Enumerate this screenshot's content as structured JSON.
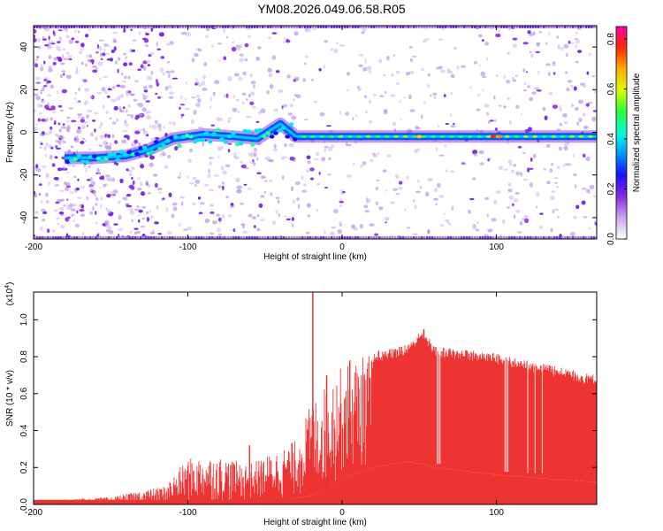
{
  "title": "YM08.2026.049.06.58.R05",
  "chart_data": [
    {
      "type": "heatmap",
      "name": "spectrogram",
      "xlabel": "Height of straight line (km)",
      "ylabel": "Frequency (Hz)",
      "xlim": [
        -200,
        165
      ],
      "ylim": [
        -50,
        50
      ],
      "xticks": [
        "-200",
        "-100",
        "0",
        "100"
      ],
      "yticks": [
        "-40",
        "-20",
        "0",
        "20",
        "40"
      ],
      "colorbar": {
        "label": "Normalized spectral amplitude",
        "range": [
          0.0,
          0.85
        ],
        "ticks": [
          "0.0",
          "0.2",
          "0.4",
          "0.6",
          "0.8"
        ],
        "colors": [
          "#ffffff",
          "#c9a7ee",
          "#8a2be2",
          "#1a0dff",
          "#0096ff",
          "#00ffd2",
          "#2bff3a",
          "#d8ff00",
          "#ffae00",
          "#ff2a00",
          "#ff00aa"
        ]
      },
      "trace": {
        "x": [
          -180,
          -160,
          -140,
          -125,
          -110,
          -90,
          -70,
          -55,
          -40,
          -30,
          0,
          50,
          100,
          165
        ],
        "y": [
          -12,
          -12,
          -11,
          -8,
          -3,
          -1,
          -2,
          -3,
          4,
          -2,
          -2,
          -2,
          -2,
          -2
        ]
      },
      "trace_color": "#0055ff",
      "hot_spots": [
        {
          "x": 98,
          "y": -2,
          "color": "#ff2200"
        },
        {
          "x": 102,
          "y": -2,
          "color": "#ff8800"
        },
        {
          "x": 50,
          "y": -2,
          "color": "#ffcc00"
        }
      ]
    },
    {
      "type": "area",
      "name": "snr",
      "xlabel": "Height of straight line (km)",
      "ylabel": "SNR (10 * v/v)",
      "multiplier": "(x10",
      "multiplier_exp": "4",
      "multiplier_close": ")",
      "xlim": [
        -200,
        165
      ],
      "ylim": [
        0,
        1.15
      ],
      "xticks": [
        "-200",
        "-100",
        "0",
        "100"
      ],
      "yticks": [
        "0.0",
        "0.2",
        "0.4",
        "0.6",
        "0.8",
        "1.0"
      ],
      "color": "#ee3333",
      "upper_x": [
        -200,
        -150,
        -115,
        -100,
        -80,
        -60,
        -40,
        -30,
        -20,
        -10,
        0,
        20,
        40,
        53,
        60,
        100,
        165
      ],
      "upper_y": [
        0.02,
        0.04,
        0.1,
        0.25,
        0.26,
        0.22,
        0.3,
        0.35,
        0.55,
        0.65,
        0.75,
        0.83,
        0.86,
        0.95,
        0.86,
        0.82,
        0.7
      ],
      "lower_x": [
        -200,
        -100,
        -40,
        -20,
        -10,
        0,
        20,
        40,
        53,
        60,
        100,
        165
      ],
      "lower_y": [
        0.0,
        0.0,
        0.02,
        0.05,
        0.08,
        0.14,
        0.2,
        0.23,
        0.22,
        0.2,
        0.16,
        0.12
      ],
      "spikes": [
        {
          "x": -19,
          "y": 1.15
        },
        {
          "x": 53,
          "y": 0.95
        },
        {
          "x": -60,
          "y": 0.32
        },
        {
          "x": -10,
          "y": 0.7
        },
        {
          "x": 5,
          "y": 0.78
        }
      ],
      "gaps": [
        61,
        64,
        105,
        108,
        118,
        132
      ]
    }
  ]
}
